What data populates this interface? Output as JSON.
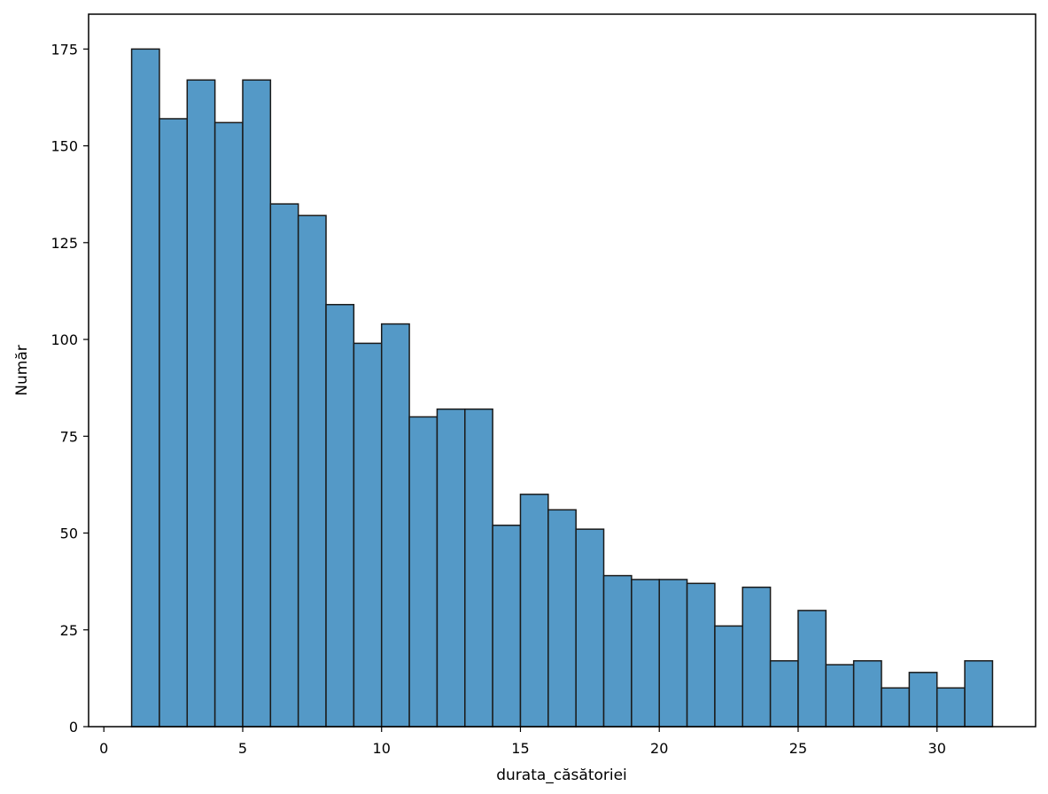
{
  "chart_data": {
    "type": "bar",
    "title": "",
    "xlabel": "durata_căsătoriei",
    "ylabel": "Număr",
    "xlim": [
      -0.55,
      33.55
    ],
    "ylim": [
      0,
      184
    ],
    "grid": false,
    "xticks": [
      0,
      5,
      10,
      15,
      20,
      25,
      30
    ],
    "yticks": [
      0,
      25,
      50,
      75,
      100,
      125,
      150,
      175
    ],
    "bin_edges": [
      1,
      2,
      3,
      4,
      5,
      6,
      7,
      8,
      9,
      10,
      11,
      12,
      13,
      14,
      15,
      16,
      17,
      18,
      19,
      20,
      21,
      22,
      23,
      24,
      25,
      26,
      27,
      28,
      29,
      30,
      31,
      32
    ],
    "values": [
      175,
      157,
      167,
      156,
      167,
      135,
      132,
      109,
      99,
      104,
      80,
      82,
      82,
      52,
      60,
      56,
      51,
      39,
      38,
      38,
      37,
      26,
      36,
      17,
      30,
      16,
      17,
      10,
      14,
      10,
      17
    ],
    "bar_color": "#5499c7",
    "edge_color": "#1a1a1a"
  }
}
